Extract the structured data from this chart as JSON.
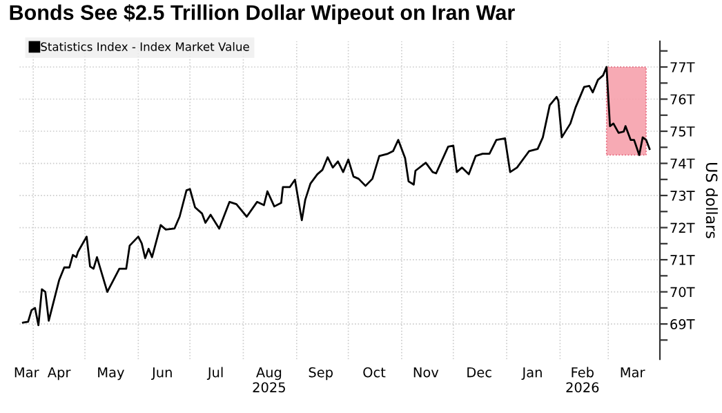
{
  "chart_data": {
    "type": "line",
    "title": "Bonds See $2.5 Trillion Dollar Wipeout on Iran War",
    "ylabel": "US dollars",
    "x": [
      "2025-03-26",
      "2025-03-29",
      "2025-03-31",
      "2025-04-02",
      "2025-04-04",
      "2025-04-06",
      "2025-04-08",
      "2025-04-10",
      "2025-04-16",
      "2025-04-19",
      "2025-04-22",
      "2025-04-24",
      "2025-04-26",
      "2025-04-27",
      "2025-05-02",
      "2025-05-04",
      "2025-05-06",
      "2025-05-08",
      "2025-05-10",
      "2025-05-14",
      "2025-05-21",
      "2025-05-25",
      "2025-05-27",
      "2025-06-01",
      "2025-06-03",
      "2025-06-05",
      "2025-06-07",
      "2025-06-09",
      "2025-06-14",
      "2025-06-17",
      "2025-06-22",
      "2025-06-25",
      "2025-06-29",
      "2025-07-01",
      "2025-07-04",
      "2025-07-08",
      "2025-07-10",
      "2025-07-13",
      "2025-07-18",
      "2025-07-24",
      "2025-07-28",
      "2025-08-03",
      "2025-08-09",
      "2025-08-13",
      "2025-08-15",
      "2025-08-19",
      "2025-08-23",
      "2025-08-24",
      "2025-08-28",
      "2025-08-31",
      "2025-09-04",
      "2025-09-06",
      "2025-09-09",
      "2025-09-13",
      "2025-09-16",
      "2025-09-19",
      "2025-09-22",
      "2025-09-25",
      "2025-09-28",
      "2025-10-01",
      "2025-10-04",
      "2025-10-07",
      "2025-10-11",
      "2025-10-15",
      "2025-10-19",
      "2025-10-24",
      "2025-10-27",
      "2025-10-30",
      "2025-11-03",
      "2025-11-05",
      "2025-11-08",
      "2025-11-09",
      "2025-11-15",
      "2025-11-19",
      "2025-11-21",
      "2025-11-28",
      "2025-12-01",
      "2025-12-03",
      "2025-12-06",
      "2025-12-10",
      "2025-12-14",
      "2025-12-18",
      "2025-12-22",
      "2025-12-26",
      "2025-12-31",
      "2026-01-03",
      "2026-01-07",
      "2026-01-14",
      "2026-01-19",
      "2026-01-22",
      "2026-01-26",
      "2026-01-30",
      "2026-01-31",
      "2026-02-02",
      "2026-02-07",
      "2026-02-10",
      "2026-02-15",
      "2026-02-18",
      "2026-02-20",
      "2026-02-23",
      "2026-02-26",
      "2026-02-28",
      "2026-03-02",
      "2026-03-04",
      "2026-03-07",
      "2026-03-10",
      "2026-03-11",
      "2026-03-14",
      "2026-03-16",
      "2026-03-19",
      "2026-03-21",
      "2026-03-23",
      "2026-03-25"
    ],
    "series": [
      {
        "name": "Statistics Index - Index Market Value",
        "color": "#000000",
        "values": [
          69.04,
          69.07,
          69.43,
          69.5,
          68.96,
          70.08,
          70.0,
          69.1,
          70.36,
          70.76,
          70.76,
          71.15,
          71.08,
          71.25,
          71.72,
          70.79,
          70.72,
          71.08,
          70.72,
          70.0,
          70.72,
          70.72,
          71.44,
          71.72,
          71.51,
          71.05,
          71.34,
          71.08,
          72.08,
          71.94,
          71.97,
          72.34,
          73.16,
          73.2,
          72.63,
          72.44,
          72.15,
          72.4,
          71.97,
          72.8,
          72.73,
          72.34,
          72.8,
          72.7,
          73.13,
          72.66,
          72.77,
          73.26,
          73.26,
          73.49,
          72.23,
          72.87,
          73.37,
          73.66,
          73.8,
          74.19,
          73.87,
          74.06,
          73.73,
          74.12,
          73.59,
          73.52,
          73.3,
          73.52,
          74.23,
          74.3,
          74.38,
          74.73,
          74.16,
          73.44,
          73.34,
          73.77,
          74.02,
          73.73,
          73.69,
          74.52,
          74.55,
          73.73,
          73.87,
          73.66,
          74.23,
          74.3,
          74.3,
          74.73,
          74.78,
          73.73,
          73.87,
          74.38,
          74.45,
          74.81,
          75.81,
          76.07,
          75.95,
          74.81,
          75.24,
          75.74,
          76.38,
          76.41,
          76.21,
          76.6,
          76.74,
          77.0,
          75.16,
          75.24,
          74.95,
          74.99,
          75.16,
          74.73,
          74.73,
          74.26,
          74.81,
          74.73,
          74.45
        ]
      }
    ],
    "xlim": [
      "2025-03-24",
      "2026-03-31"
    ],
    "xticks": [
      {
        "value": "2025-04-01",
        "label": null
      },
      {
        "value": "2025-05-01",
        "label": null
      },
      {
        "value": "2025-06-01",
        "label": null
      },
      {
        "value": "2025-07-01",
        "label": null
      },
      {
        "value": "2025-08-01",
        "label": null
      },
      {
        "value": "2025-09-01",
        "label": null
      },
      {
        "value": "2025-10-01",
        "label": null
      },
      {
        "value": "2025-11-01",
        "label": null
      },
      {
        "value": "2025-12-01",
        "label": null
      },
      {
        "value": "2026-01-01",
        "label": null
      },
      {
        "value": "2026-02-01",
        "label": null
      },
      {
        "value": "2026-03-01",
        "label": null
      },
      {
        "value": "2025-03-28",
        "label": "Mar"
      },
      {
        "value": "2025-04-16",
        "label": "Apr"
      },
      {
        "value": "2025-05-16",
        "label": "May"
      },
      {
        "value": "2025-06-15",
        "label": "Jun"
      },
      {
        "value": "2025-07-16",
        "label": "Jul"
      },
      {
        "value": "2025-08-16",
        "label": "Aug\n2025"
      },
      {
        "value": "2025-09-15",
        "label": "Sep"
      },
      {
        "value": "2025-10-16",
        "label": "Oct"
      },
      {
        "value": "2025-11-15",
        "label": "Nov"
      },
      {
        "value": "2025-12-16",
        "label": "Dec"
      },
      {
        "value": "2026-01-16",
        "label": "Jan"
      },
      {
        "value": "2026-02-14",
        "label": "Feb\n2026"
      },
      {
        "value": "2026-03-15",
        "label": "Mar"
      }
    ],
    "ylim": [
      67.9,
      77.8
    ],
    "yticks": [
      {
        "value": 69,
        "label": "69T"
      },
      {
        "value": 70,
        "label": "70T"
      },
      {
        "value": 71,
        "label": "71T"
      },
      {
        "value": 72,
        "label": "72T"
      },
      {
        "value": 73,
        "label": "73T"
      },
      {
        "value": 74,
        "label": "74T"
      },
      {
        "value": 75,
        "label": "75T"
      },
      {
        "value": 76,
        "label": "76T"
      },
      {
        "value": 77,
        "label": "77T"
      },
      {
        "value": 68.5,
        "label": null
      },
      {
        "value": 69.5,
        "label": null
      },
      {
        "value": 70.5,
        "label": null
      },
      {
        "value": 71.5,
        "label": null
      },
      {
        "value": 72.5,
        "label": null
      },
      {
        "value": 73.5,
        "label": null
      },
      {
        "value": 74.5,
        "label": null
      },
      {
        "value": 75.5,
        "label": null
      },
      {
        "value": 76.5,
        "label": null
      },
      {
        "value": 77.5,
        "label": null
      }
    ],
    "bands": [
      {
        "axis": "x",
        "from": "2026-02-28",
        "to": "2026-03-23",
        "color": "#f7a1ac"
      }
    ],
    "grid": true,
    "legend": "top left",
    "line_style": "solid",
    "marker": "none"
  }
}
